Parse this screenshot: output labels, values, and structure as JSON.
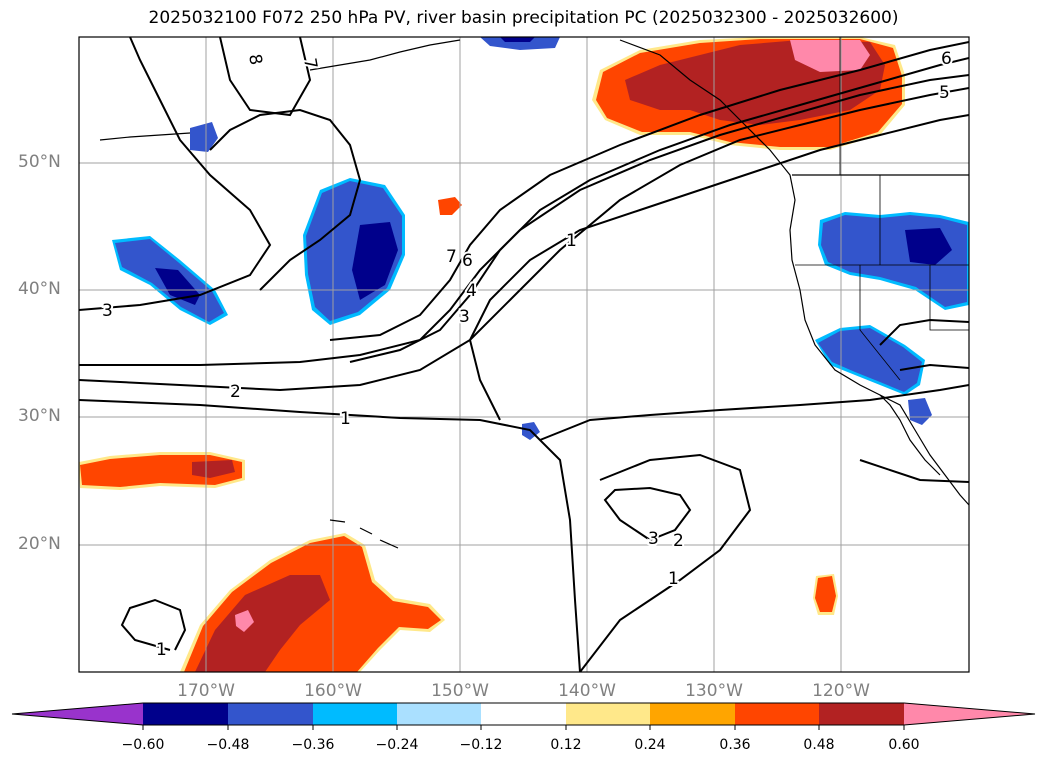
{
  "title": "2025032100 F072 250 hPa PV, river basin precipitation PC (2025032300 - 2025032600)",
  "lat_labels": [
    "50°N",
    "40°N",
    "30°N",
    "20°N"
  ],
  "lon_labels": [
    "170°W",
    "160°W",
    "150°W",
    "140°W",
    "130°W",
    "120°W"
  ],
  "contour_labels": [
    "8",
    "7",
    "6",
    "5",
    "3",
    "2",
    "1",
    "7",
    "6",
    "4",
    "3",
    "1",
    "3",
    "2",
    "1",
    "1"
  ],
  "colorbar": {
    "ticks": [
      "−0.60",
      "−0.48",
      "−0.36",
      "−0.24",
      "−0.12",
      "0.12",
      "0.24",
      "0.36",
      "0.48",
      "0.60"
    ],
    "colors": [
      "#9933cc",
      "#00008b",
      "#3355cc",
      "#00bbff",
      "#aae0ff",
      "#ffffff",
      "#ffe88a",
      "#ffa500",
      "#ff4500",
      "#b22222",
      "#ff88aa"
    ]
  }
}
